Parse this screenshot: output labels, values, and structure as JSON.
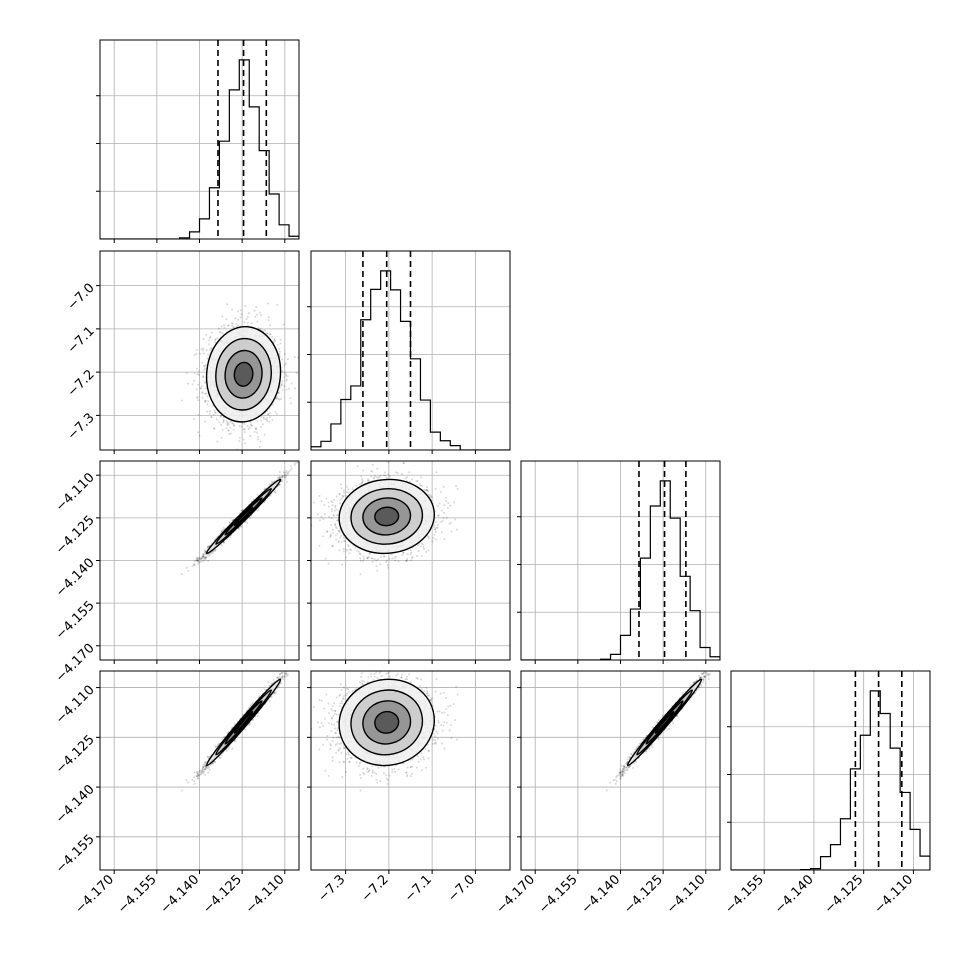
{
  "chart_data": {
    "type": "corner-plot",
    "title": "",
    "grid": true,
    "parameters": [
      {
        "index": 0,
        "range": [
          -4.175,
          -4.105
        ],
        "ticks": [
          -4.17,
          -4.155,
          -4.14,
          -4.125,
          -4.11
        ],
        "tick_labels": [
          "−4.170",
          "−4.155",
          "−4.140",
          "−4.125",
          "−4.110"
        ],
        "quantiles": [
          -4.1335,
          -4.1245,
          -4.1165
        ],
        "median": -4.1245,
        "std": 0.0065
      },
      {
        "index": 1,
        "range": [
          -7.38,
          -6.92
        ],
        "ticks": [
          -7.3,
          -7.2,
          -7.1,
          -7.0
        ],
        "tick_labels": [
          "−7.3",
          "−7.2",
          "−7.1",
          "−7.0"
        ],
        "quantiles": [
          -7.26,
          -7.205,
          -7.15
        ],
        "median": -7.205,
        "std": 0.055
      },
      {
        "index": 2,
        "range": [
          -4.175,
          -4.105
        ],
        "ticks": [
          -4.17,
          -4.155,
          -4.14,
          -4.125,
          -4.11
        ],
        "tick_labels": [
          "−4.170",
          "−4.155",
          "−4.140",
          "−4.125",
          "−4.110"
        ],
        "quantiles": [
          -4.1335,
          -4.1245,
          -4.117
        ],
        "median": -4.1245,
        "std": 0.0065
      },
      {
        "index": 3,
        "range": [
          -4.165,
          -4.105
        ],
        "ticks": [
          -4.155,
          -4.14,
          -4.125,
          -4.11
        ],
        "tick_labels": [
          "−4.155",
          "−4.140",
          "−4.125",
          "−4.110"
        ],
        "quantiles": [
          -4.1275,
          -4.1205,
          -4.1135
        ],
        "median": -4.1205,
        "std": 0.0065
      }
    ],
    "correlations": [
      [
        1.0,
        0.05,
        0.99,
        0.99
      ],
      [
        0.05,
        1.0,
        0.05,
        0.05
      ],
      [
        0.99,
        0.05,
        1.0,
        0.99
      ],
      [
        0.99,
        0.05,
        0.99,
        1.0
      ]
    ],
    "contour_levels_sigma": [
      0.5,
      1.0,
      1.5,
      2.0
    ],
    "sample_count": 2000,
    "colors": {
      "line": "#000000",
      "grid": "#b0b0b0",
      "points": "#000000"
    }
  }
}
